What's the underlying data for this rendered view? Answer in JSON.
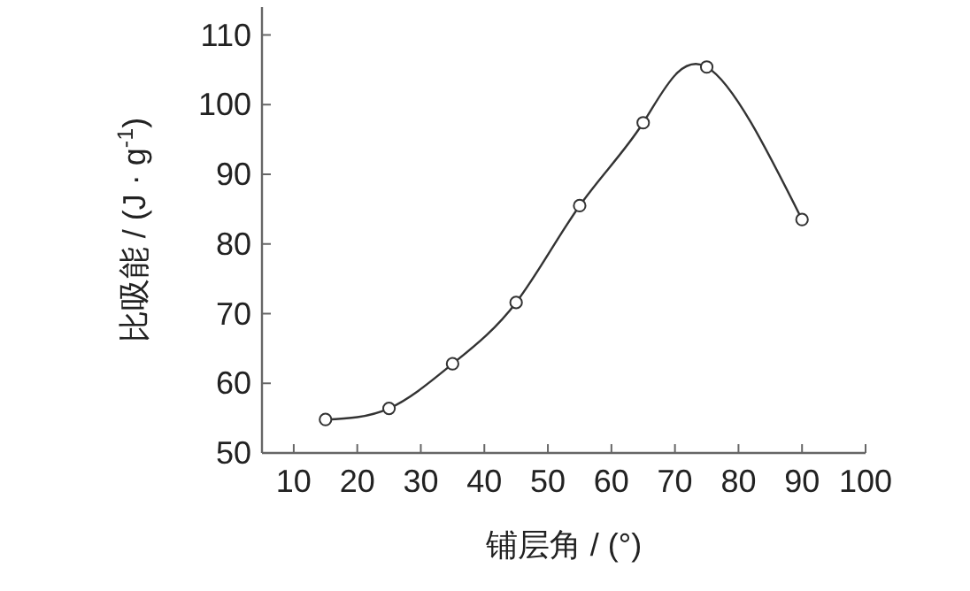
{
  "chart_data": {
    "type": "line",
    "xlabel": "铺层角 / (°)",
    "ylabel": "比吸能 / (J · g$^{-1}$)",
    "x": [
      15,
      25,
      35,
      45,
      55,
      65,
      75,
      90
    ],
    "series": [
      {
        "color": "#333333",
        "values": [
          54.8,
          56.4,
          62.8,
          71.6,
          85.5,
          97.4,
          105.4,
          83.5
        ]
      }
    ],
    "xlim": [
      5,
      100
    ],
    "xticks": [
      10,
      20,
      30,
      40,
      50,
      60,
      70,
      80,
      90,
      100
    ],
    "ylim": [
      50,
      114
    ],
    "yticks": [
      50,
      60,
      70,
      80,
      90,
      100,
      110
    ],
    "marker": "circle",
    "line_style": "solid",
    "grid": false
  }
}
